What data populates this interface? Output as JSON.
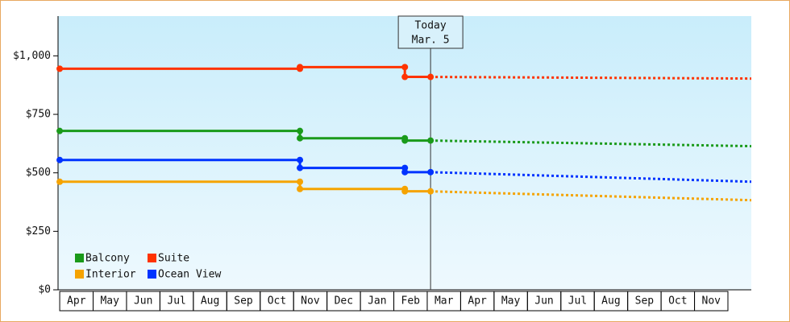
{
  "chart_data": {
    "type": "line",
    "categories": [
      "Apr",
      "May",
      "Jun",
      "Jul",
      "Aug",
      "Sep",
      "Oct",
      "Nov",
      "Dec",
      "Jan",
      "Feb",
      "Mar",
      "Apr",
      "May",
      "Jun",
      "Jul",
      "Aug",
      "Sep",
      "Oct",
      "Nov"
    ],
    "xlim": [
      -0.05,
      20.7
    ],
    "ylim": [
      0,
      1170
    ],
    "yticks": [
      {
        "value": 0,
        "label": "$0"
      },
      {
        "value": 250,
        "label": "$250"
      },
      {
        "value": 500,
        "label": "$500"
      },
      {
        "value": 750,
        "label": "$750"
      },
      {
        "value": 1000,
        "label": "$1,000"
      }
    ],
    "annotation": {
      "text": [
        "Today",
        "Mar. 5"
      ],
      "x": 11.1
    },
    "legend": "lower left",
    "series": [
      {
        "name": "Balcony",
        "color": "#1a9a1a",
        "x": [
          0,
          7.19,
          7.19,
          10.33,
          10.33,
          11.1
        ],
        "values": [
          679,
          679,
          648,
          648,
          638,
          638
        ],
        "forecast": {
          "x": [
            11.1,
            20.7
          ],
          "values": [
            638,
            614
          ]
        }
      },
      {
        "name": "Suite",
        "color": "#ff3300",
        "x": [
          0,
          7.19,
          7.19,
          10.33,
          10.33,
          11.1
        ],
        "values": [
          945,
          945,
          952,
          952,
          910,
          910
        ],
        "forecast": {
          "x": [
            11.1,
            20.7
          ],
          "values": [
            910,
            903
          ]
        }
      },
      {
        "name": "Interior",
        "color": "#f5a300",
        "x": [
          0,
          7.19,
          7.19,
          10.33,
          10.33,
          11.1
        ],
        "values": [
          462,
          462,
          431,
          431,
          421,
          421
        ],
        "forecast": {
          "x": [
            11.1,
            20.7
          ],
          "values": [
            421,
            383
          ]
        }
      },
      {
        "name": "Ocean View",
        "color": "#0033ff",
        "x": [
          0,
          7.19,
          7.19,
          10.33,
          10.33,
          11.1
        ],
        "values": [
          555,
          555,
          521,
          521,
          503,
          503
        ],
        "forecast": {
          "x": [
            11.1,
            20.7
          ],
          "values": [
            503,
            462
          ]
        }
      }
    ]
  }
}
